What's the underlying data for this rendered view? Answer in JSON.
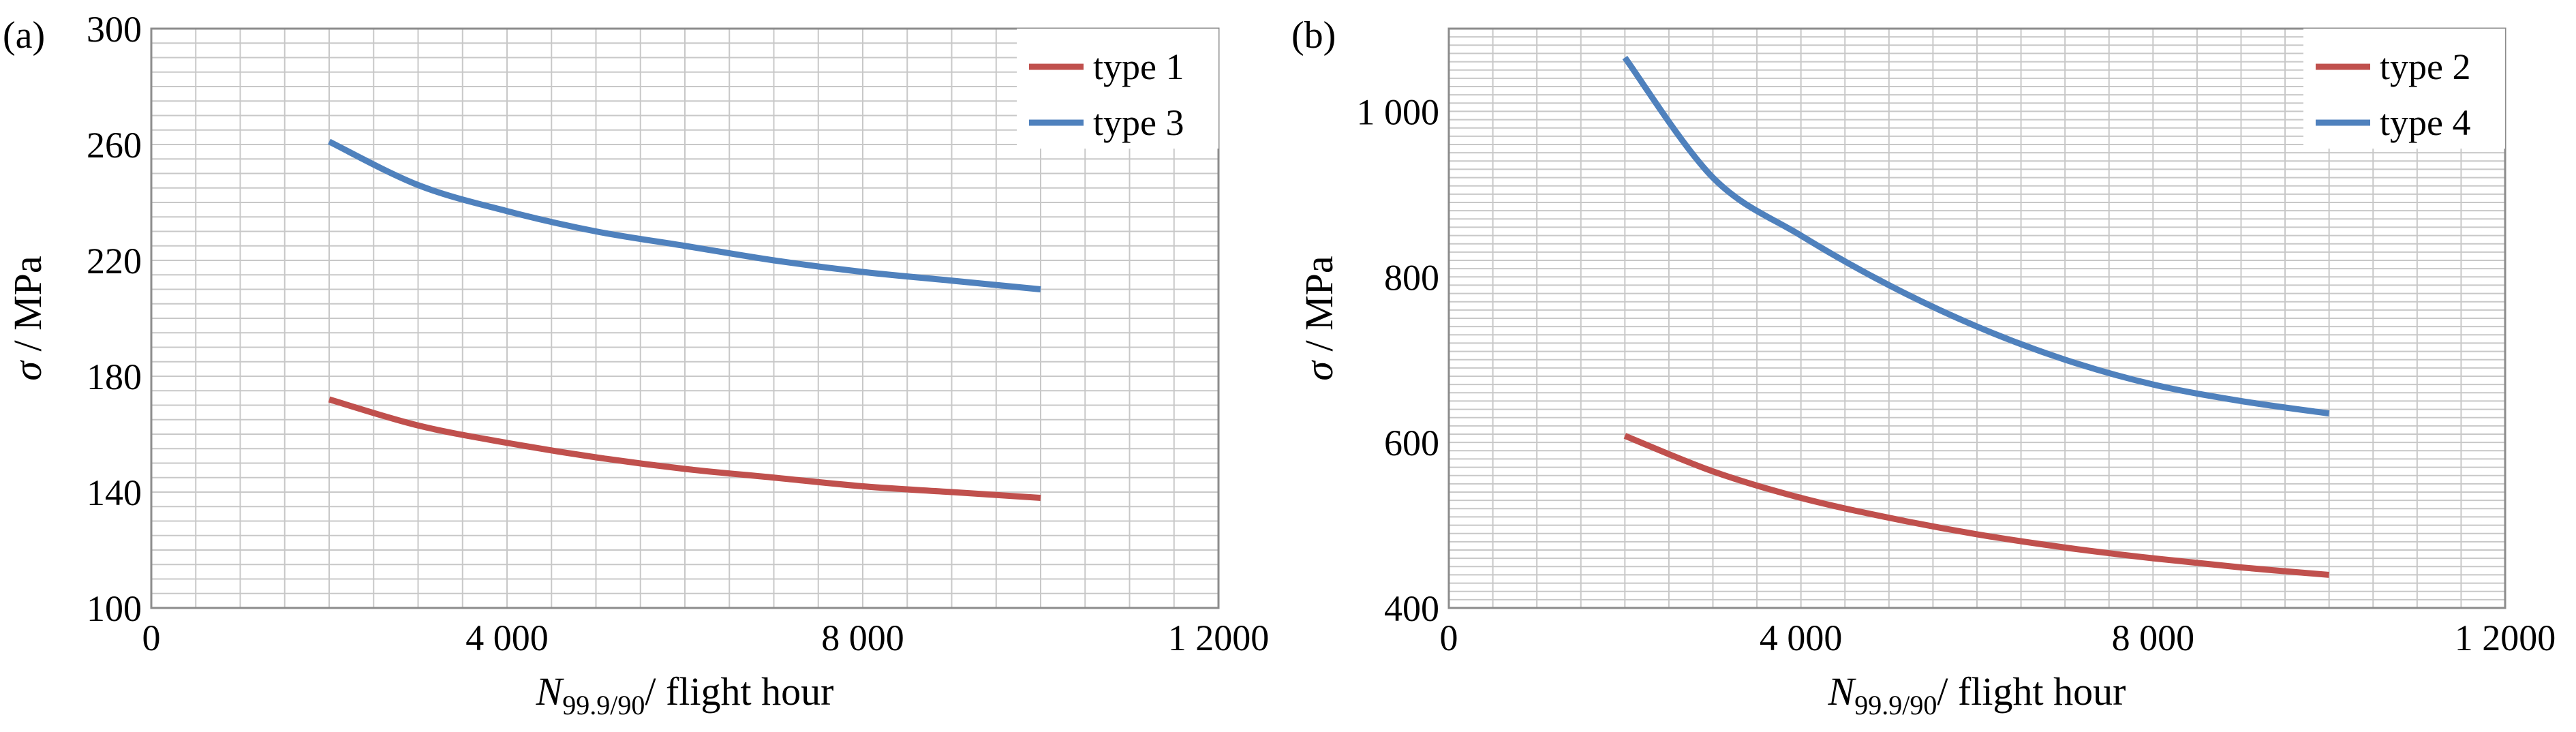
{
  "chart_data": [
    {
      "panel_label": "(a)",
      "type": "line",
      "x_ticks": [
        "0",
        "4 000",
        "8 000",
        "1 2000"
      ],
      "y_ticks": [
        "100",
        "140",
        "180",
        "220",
        "260",
        "300"
      ],
      "xlim": [
        0,
        12000
      ],
      "ylim": [
        100,
        300
      ],
      "xlabel": {
        "main": "N",
        "sub": "99.9/90",
        "rest": "/ flight hour"
      },
      "ylabel": {
        "sym": "σ",
        "rest": " / MPa"
      },
      "grid": true,
      "legend": "top-right",
      "x": [
        2000,
        3000,
        4000,
        5000,
        6000,
        7000,
        8000,
        9000,
        10000
      ],
      "series": [
        {
          "name": "type 1",
          "color": "#c0504d",
          "values": [
            172,
            163,
            157,
            152,
            148,
            145,
            142,
            140,
            138
          ]
        },
        {
          "name": "type 3",
          "color": "#4f81bd",
          "values": [
            261,
            246,
            237,
            230,
            225,
            220,
            216,
            213,
            210
          ]
        }
      ]
    },
    {
      "panel_label": "(b)",
      "type": "line",
      "x_ticks": [
        "0",
        "4 000",
        "8 000",
        "1 2000"
      ],
      "y_ticks": [
        "400",
        "600",
        "800",
        "1 000"
      ],
      "xlim": [
        0,
        12000
      ],
      "ylim": [
        400,
        1100
      ],
      "xlabel": {
        "main": "N",
        "sub": "99.9/90",
        "rest": "/ flight hour"
      },
      "ylabel": {
        "sym": "σ",
        "rest": " / MPa"
      },
      "grid": true,
      "legend": "top-right",
      "x": [
        2000,
        3000,
        4000,
        5000,
        6000,
        7000,
        8000,
        9000,
        10000
      ],
      "series": [
        {
          "name": "type 2",
          "color": "#c0504d",
          "values": [
            608,
            565,
            533,
            509,
            489,
            473,
            460,
            449,
            440
          ]
        },
        {
          "name": "type 4",
          "color": "#4f81bd",
          "values": [
            1065,
            920,
            850,
            790,
            740,
            700,
            670,
            650,
            635
          ]
        }
      ]
    }
  ]
}
